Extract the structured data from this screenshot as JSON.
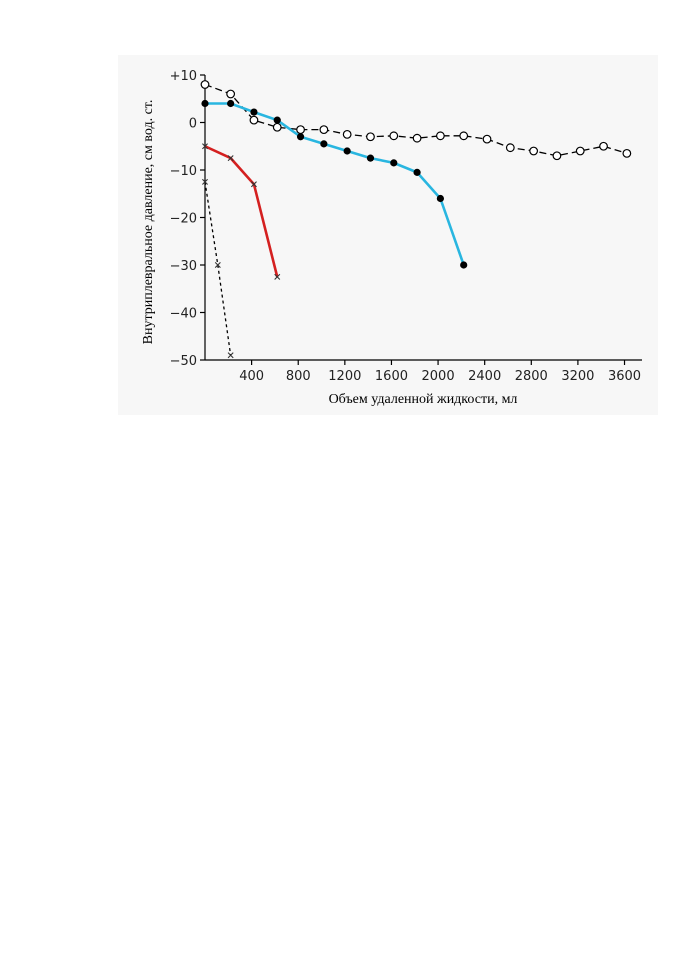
{
  "chart_data": {
    "type": "line",
    "title": "",
    "xlabel": "Объем удаленной жидкости, мл",
    "ylabel": "Внутриплевральное давление, см вод. ст.",
    "xlim": [
      0,
      3750
    ],
    "ylim": [
      -50,
      10
    ],
    "x_ticks": [
      400,
      800,
      1200,
      1600,
      2000,
      2400,
      2800,
      3200,
      3600
    ],
    "x_tick_labels": [
      "400",
      "800",
      "1200",
      "1600",
      "2000",
      "2400",
      "2800",
      "3200",
      "3600"
    ],
    "y_ticks": [
      10,
      0,
      -10,
      -20,
      -30,
      -40,
      -50
    ],
    "y_tick_labels": [
      "+10",
      "0",
      "−10",
      "−20",
      "−30",
      "−40",
      "−50"
    ],
    "grid": false,
    "legend": "none",
    "series": [
      {
        "color": "#000000",
        "line_style": "dashed",
        "marker": "open-circle",
        "x": [
          0,
          220,
          420,
          620,
          820,
          1020,
          1220,
          1420,
          1620,
          1820,
          2020,
          2220,
          2420,
          2620,
          2820,
          3020,
          3220,
          3420,
          3620
        ],
        "y": [
          8,
          6,
          0.5,
          -1,
          -1.5,
          -1.5,
          -2.5,
          -3,
          -2.8,
          -3.3,
          -2.8,
          -2.8,
          -3.5,
          -5.3,
          -6,
          -7,
          -6,
          -5,
          -6.5
        ]
      },
      {
        "color": "#29b6e0",
        "line_style": "solid",
        "marker": "filled-circle",
        "x": [
          0,
          220,
          420,
          620,
          820,
          1020,
          1220,
          1420,
          1620,
          1820,
          2020,
          2220
        ],
        "y": [
          4,
          4,
          2.2,
          0.5,
          -3,
          -4.5,
          -6,
          -7.5,
          -8.5,
          -10.5,
          -16,
          -30
        ]
      },
      {
        "color": "#d42020",
        "line_style": "solid",
        "marker": "x",
        "x": [
          0,
          220,
          420,
          620
        ],
        "y": [
          -5,
          -7.5,
          -13,
          -32.5
        ]
      },
      {
        "color": "#000000",
        "line_style": "dotted",
        "marker": "x",
        "x": [
          0,
          110,
          220
        ],
        "y": [
          -12.5,
          -30,
          -49
        ]
      }
    ]
  }
}
